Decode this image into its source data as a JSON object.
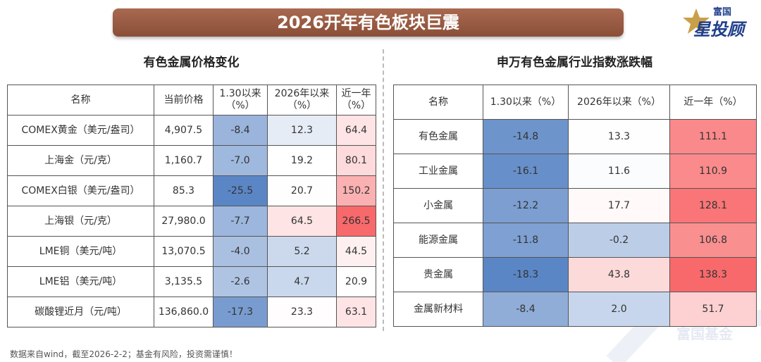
{
  "header": {
    "title": "2026开年有色板块巨震",
    "logo_top": "富国",
    "logo_main": "星投顾"
  },
  "left": {
    "subtitle": "有色金属价格变化",
    "table": {
      "columns": [
        "名称",
        "当前价格",
        "1.30以来（%）",
        "2026年以来（%）",
        "近一年（%）"
      ],
      "heat_columns": [
        2,
        3,
        4
      ],
      "rows": [
        [
          "COMEX黄金（美元/盎司）",
          "4,907.5",
          "-8.4",
          "12.3",
          "64.4"
        ],
        [
          "上海金（元/克）",
          "1,160.7",
          "-7.0",
          "19.2",
          "80.1"
        ],
        [
          "COMEX白银（美元/盎司）",
          "85.3",
          "-25.5",
          "20.7",
          "150.2"
        ],
        [
          "上海银（元/克）",
          "27,980.0",
          "-7.7",
          "64.5",
          "266.5"
        ],
        [
          "LME铜（美元/吨）",
          "13,070.5",
          "-4.0",
          "5.2",
          "44.5"
        ],
        [
          "LME铝（美元/吨）",
          "3,135.5",
          "-2.6",
          "4.7",
          "20.9"
        ],
        [
          "碳酸锂近月（元/吨）",
          "136,860.0",
          "-17.3",
          "23.3",
          "63.1"
        ]
      ]
    }
  },
  "right": {
    "subtitle": "申万有色金属行业指数涨跌幅",
    "table": {
      "columns": [
        "名称",
        "1.30以来（%）",
        "2026年以来（%）",
        "近一年（%）"
      ],
      "heat_columns": [
        1,
        2,
        3
      ],
      "rows": [
        [
          "有色金属",
          "-14.8",
          "13.3",
          "111.1"
        ],
        [
          "工业金属",
          "-16.1",
          "11.6",
          "110.9"
        ],
        [
          "小金属",
          "-12.2",
          "17.7",
          "128.1"
        ],
        [
          "能源金属",
          "-11.8",
          "-0.2",
          "106.8"
        ],
        [
          "贵金属",
          "-18.3",
          "43.8",
          "138.3"
        ],
        [
          "金属新材料",
          "-8.4",
          "2.0",
          "51.7"
        ]
      ]
    }
  },
  "heat_colors": {
    "low": "#5b86c6",
    "mid": "#ffffff",
    "high": "#f8696b"
  },
  "footer": {
    "note": "数据来自wind，截至2026-2-2；基金有风险，投资需谨慎！",
    "watermark": "富国基金"
  }
}
